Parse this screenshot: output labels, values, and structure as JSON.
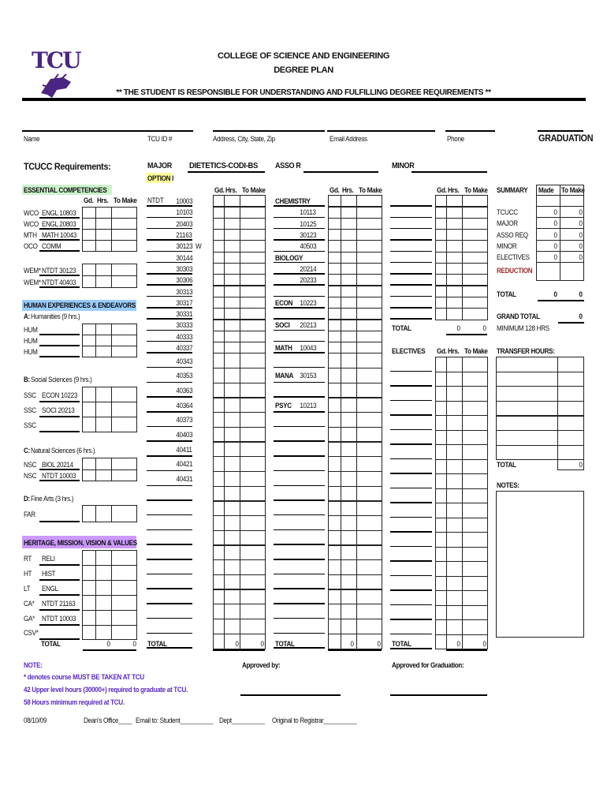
{
  "header": {
    "logo_text": "TCU",
    "college": "COLLEGE OF SCIENCE AND ENGINEERING",
    "plan": "DEGREE PLAN",
    "disclaimer": "** THE STUDENT IS RESPONSIBLE FOR UNDERSTANDING AND FULFILLING DEGREE REQUIREMENTS **"
  },
  "fields": {
    "name": "Name",
    "tcu_id": "TCU ID #",
    "address": "Address, City, State, Zip",
    "email": "Email Address",
    "phone": "Phone",
    "graduation": "GRADUATION"
  },
  "col_headers": {
    "gd": "Gd.",
    "hrs": "Hrs.",
    "to_make": "To Make"
  },
  "tcucc": {
    "title": "TCUCC Requirements:",
    "essential_heading": "ESSENTIAL COMPETENCIES",
    "essential_rows": [
      [
        "WCO",
        "ENGL  10803"
      ],
      [
        "WCO",
        "ENGL  20803"
      ],
      [
        "MTH",
        "MATH  10043"
      ],
      [
        "OCO",
        "COMM"
      ]
    ],
    "wem_rows": [
      [
        "WEM*",
        "NTDT  30123"
      ],
      [
        "WEM*",
        "NTDT  40403"
      ]
    ],
    "human_heading": "HUMAN EXPERIENCES & ENDEAVORS",
    "a_letter": "A:",
    "a_label": " Humanities (9 hrs.)",
    "a_rows": [
      [
        "HUM",
        ""
      ],
      [
        "HUM",
        ""
      ],
      [
        "HUM",
        ""
      ]
    ],
    "b_letter": "B:",
    "b_label": " Social Sciences (9 hrs.)",
    "b_rows": [
      [
        "SSC",
        "ECON  10223"
      ],
      [
        "SSC",
        "SOCI   20213"
      ],
      [
        "SSC",
        ""
      ]
    ],
    "c_letter": "C:",
    "c_label": " Natural Sciences (6 hrs.)",
    "c_rows": [
      [
        "NSC",
        "BIOL    20214"
      ],
      [
        "NSC",
        "NTDT   10003"
      ]
    ],
    "d_letter": "D:",
    "d_label": " Fine Arts (3 hrs.)",
    "d_rows": [
      [
        "FAR",
        ""
      ]
    ],
    "hmvv_heading": "HERITAGE, MISSION, VISION & VALUES",
    "hmvv_rows": [
      [
        "RT",
        "RELI"
      ],
      [
        "HT",
        "HIST"
      ],
      [
        "LT",
        "ENGL"
      ],
      [
        "CA*",
        "NTDT  21163"
      ],
      [
        "GA*",
        "NTDT  10003"
      ],
      [
        "CSV*",
        ""
      ]
    ],
    "total_label": "TOTAL",
    "total_hrs": "0",
    "total_to_make": "0"
  },
  "major": {
    "label": "MAJOR",
    "value": "DIETETICS-CODI-BS",
    "option": "OPTION I",
    "prefix": "NTDT",
    "courses": [
      "10003",
      "10103",
      "20403",
      "21163",
      "30123",
      "30144",
      "30303",
      "30306",
      "30313",
      "30317",
      "30331",
      "30333",
      "40333",
      "40337",
      "40343",
      "40353",
      "40363",
      "40364",
      "40373",
      "40403",
      "40411",
      "40421",
      "40431"
    ],
    "writing_flag": "W",
    "total_label": "TOTAL",
    "total_hrs": "0",
    "total_to_make": "0"
  },
  "asso": {
    "label": "ASSO REQ",
    "items": [
      {
        "subject": "CHEMISTRY",
        "num": ""
      },
      {
        "subject": "",
        "num": "10113"
      },
      {
        "subject": "",
        "num": "10125"
      },
      {
        "subject": "",
        "num": "30123"
      },
      {
        "subject": "",
        "num": "40503"
      },
      {
        "subject": "BIOLOGY",
        "num": ""
      },
      {
        "subject": "",
        "num": "20214"
      },
      {
        "subject": "",
        "num": "20233"
      },
      {
        "subject": "",
        "num": ""
      },
      {
        "subject": "ECON",
        "num": "10223"
      },
      {
        "subject": "",
        "num": ""
      },
      {
        "subject": "SOCI",
        "num": "20213"
      },
      {
        "subject": "",
        "num": ""
      },
      {
        "subject": "MATH",
        "num": "10043"
      },
      {
        "subject": "",
        "num": ""
      },
      {
        "subject": "MANA",
        "num": "30153"
      },
      {
        "subject": "",
        "num": ""
      },
      {
        "subject": "PSYC",
        "num": "10213"
      }
    ],
    "total_label": "TOTAL",
    "total_hrs": "0",
    "total_to_make": "0"
  },
  "minor": {
    "label": "MINOR",
    "total_label": "TOTAL",
    "total_hrs": "0",
    "total_to_make": "0"
  },
  "electives": {
    "label": "ELECTIVES",
    "total_label": "TOTAL",
    "total_hrs": "0",
    "total_to_make": "0"
  },
  "summary": {
    "title": "SUMMARY",
    "made_header": "Made",
    "to_make_header": "To Make",
    "rows": [
      {
        "label": "TCUCC",
        "made": "0",
        "to_make": "0"
      },
      {
        "label": "MAJOR",
        "made": "0",
        "to_make": "0"
      },
      {
        "label": "ASSO REQ",
        "made": "0",
        "to_make": "0"
      },
      {
        "label": "MINOR",
        "made": "0",
        "to_make": "0"
      },
      {
        "label": "ELECTIVES",
        "made": "0",
        "to_make": "0"
      }
    ],
    "reduction_label": "REDUCTION",
    "total_label": "TOTAL",
    "total_made": "0",
    "total_to_make": "0",
    "grand_total_label": "GRAND TOTAL",
    "grand_total": "0",
    "minimum": "MINIMUM 128 HRS",
    "transfer_label": "TRANSFER HOURS:",
    "transfer_total_label": "TOTAL",
    "transfer_total": "0",
    "notes_label": "NOTES:"
  },
  "notes": {
    "heading": "NOTE:",
    "lines": [
      "* denotes course MUST BE TAKEN AT TCU",
      "42 Upper level hours (30000+) required to graduate at TCU.",
      "58 Hours minimum required at TCU."
    ]
  },
  "approvals": {
    "approved_by": "Approved by:",
    "approved_grad": "Approved for Graduation:"
  },
  "footer": {
    "date": "08/10/09",
    "deans": "Dean's Office____",
    "email": "Email to: Student__________",
    "dept": "Dept__________",
    "registrar": "Original to Registrar__________"
  },
  "colors": {
    "green": "#ccf2cc",
    "blue": "#99ccff",
    "purple": "#cc99ff",
    "yellow": "#ffff99",
    "note": "#5b2cc0",
    "reduction": "#9b2a2a",
    "logo": "#4b2582"
  }
}
